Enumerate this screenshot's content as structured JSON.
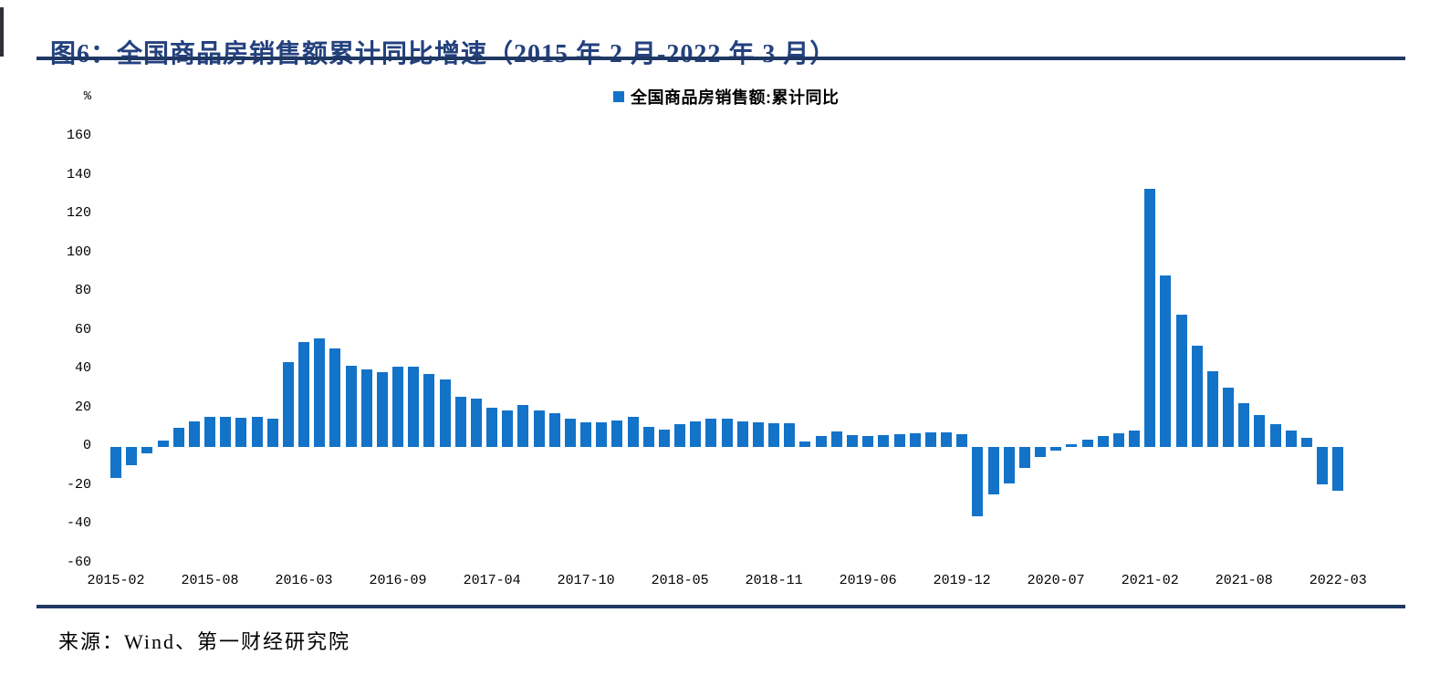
{
  "header": {
    "title": "图6：全国商品房销售额累计同比增速（2015 年 2 月-2022 年 3 月）"
  },
  "chart": {
    "legend": "全国商品房销售额:累计同比",
    "unit": "%"
  },
  "footer": {
    "source": "来源：Wind、第一财经研究院"
  },
  "colors": {
    "bar": "#1373c8",
    "legend_marker": "#1373c8",
    "title_text": "#24417e",
    "rule": "#1f3864",
    "tick_text": "#000000"
  },
  "chart_data": {
    "type": "bar",
    "title": "全国商品房销售额累计同比增速（2015年2月-2022年3月）",
    "xlabel": "",
    "ylabel": "%",
    "ylim": [
      -60,
      160
    ],
    "yticks": [
      160,
      140,
      120,
      100,
      80,
      60,
      40,
      20,
      0,
      -20,
      -40,
      -60
    ],
    "grid": false,
    "legend_position": "top-center",
    "legend_entries": [
      "全国商品房销售额:累计同比"
    ],
    "xtick_labels": [
      "2015-02",
      "2015-08",
      "2016-03",
      "2016-09",
      "2017-04",
      "2017-10",
      "2018-05",
      "2018-11",
      "2019-06",
      "2019-12",
      "2020-07",
      "2021-02",
      "2021-08",
      "2022-03"
    ],
    "xtick_bar_indices": [
      0,
      6,
      12,
      18,
      24,
      30,
      36,
      42,
      48,
      54,
      60,
      66,
      72,
      78
    ],
    "categories": [
      "2015-02",
      "2015-03",
      "2015-04",
      "2015-05",
      "2015-06",
      "2015-07",
      "2015-08",
      "2015-09",
      "2015-10",
      "2015-11",
      "2015-12",
      "2016-02",
      "2016-03",
      "2016-04",
      "2016-05",
      "2016-06",
      "2016-07",
      "2016-08",
      "2016-09",
      "2016-10",
      "2016-11",
      "2016-12",
      "2017-02",
      "2017-03",
      "2017-04",
      "2017-05",
      "2017-06",
      "2017-07",
      "2017-08",
      "2017-09",
      "2017-10",
      "2017-11",
      "2017-12",
      "2018-02",
      "2018-03",
      "2018-04",
      "2018-05",
      "2018-06",
      "2018-07",
      "2018-08",
      "2018-09",
      "2018-10",
      "2018-11",
      "2018-12",
      "2019-02",
      "2019-03",
      "2019-04",
      "2019-05",
      "2019-06",
      "2019-07",
      "2019-08",
      "2019-09",
      "2019-10",
      "2019-11",
      "2019-12",
      "2020-02",
      "2020-03",
      "2020-04",
      "2020-05",
      "2020-06",
      "2020-07",
      "2020-08",
      "2020-09",
      "2020-10",
      "2020-11",
      "2020-12",
      "2021-02",
      "2021-03",
      "2021-04",
      "2021-05",
      "2021-06",
      "2021-07",
      "2021-08",
      "2021-09",
      "2021-10",
      "2021-11",
      "2021-12",
      "2022-02",
      "2022-03"
    ],
    "values": [
      -15.8,
      -9.2,
      -3.1,
      3.1,
      10.0,
      13.4,
      15.3,
      15.3,
      14.9,
      15.6,
      14.4,
      43.6,
      54.1,
      55.9,
      50.7,
      42.1,
      39.8,
      38.7,
      41.3,
      41.2,
      37.5,
      34.8,
      26.0,
      25.1,
      20.1,
      18.6,
      21.5,
      18.9,
      17.2,
      14.6,
      12.6,
      12.7,
      13.7,
      15.3,
      10.4,
      9.0,
      11.8,
      13.2,
      14.4,
      14.5,
      13.3,
      12.5,
      12.1,
      12.2,
      2.8,
      5.6,
      8.1,
      6.1,
      5.6,
      6.2,
      6.7,
      7.1,
      7.3,
      7.3,
      6.5,
      -35.9,
      -24.7,
      -18.6,
      -10.6,
      -5.4,
      -2.1,
      1.6,
      3.8,
      5.8,
      7.2,
      8.7,
      133.4,
      88.5,
      68.2,
      52.4,
      38.9,
      30.7,
      22.8,
      16.6,
      11.8,
      8.5,
      4.8,
      -19.3,
      -22.7
    ]
  }
}
